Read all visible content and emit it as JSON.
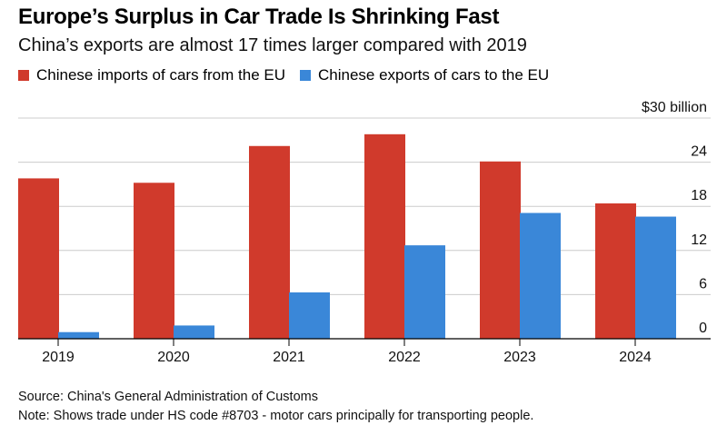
{
  "title": "Europe’s Surplus in Car Trade Is Shrinking Fast",
  "subtitle": "China’s exports are almost 17 times larger compared with 2019",
  "source": "Source: China's General Administration of Customs",
  "note": "Note: Shows trade under HS code #8703 - motor cars principally for transporting people.",
  "colors": {
    "imports": "#d03a2c",
    "exports": "#3a87d8",
    "grid": "#cccccc",
    "axis": "#000000"
  },
  "chart_data": {
    "type": "bar",
    "title": "Europe’s Surplus in Car Trade Is Shrinking Fast",
    "xlabel": "",
    "ylabel": "",
    "categories": [
      "2019",
      "2020",
      "2021",
      "2022",
      "2023",
      "2024"
    ],
    "series": [
      {
        "name": "Chinese imports of cars from the EU",
        "values": [
          21.8,
          21.2,
          26.2,
          27.8,
          24.1,
          18.4
        ]
      },
      {
        "name": "Chinese exports of cars to the EU",
        "values": [
          0.9,
          1.8,
          6.3,
          12.7,
          17.1,
          16.6
        ]
      }
    ],
    "ylim": [
      0,
      30
    ],
    "yticks": [
      0,
      6,
      12,
      18,
      24,
      30
    ],
    "ytick_labels": [
      "0",
      "6",
      "12",
      "18",
      "24",
      "$30 billion"
    ],
    "grid": true,
    "legend": "top-left"
  }
}
